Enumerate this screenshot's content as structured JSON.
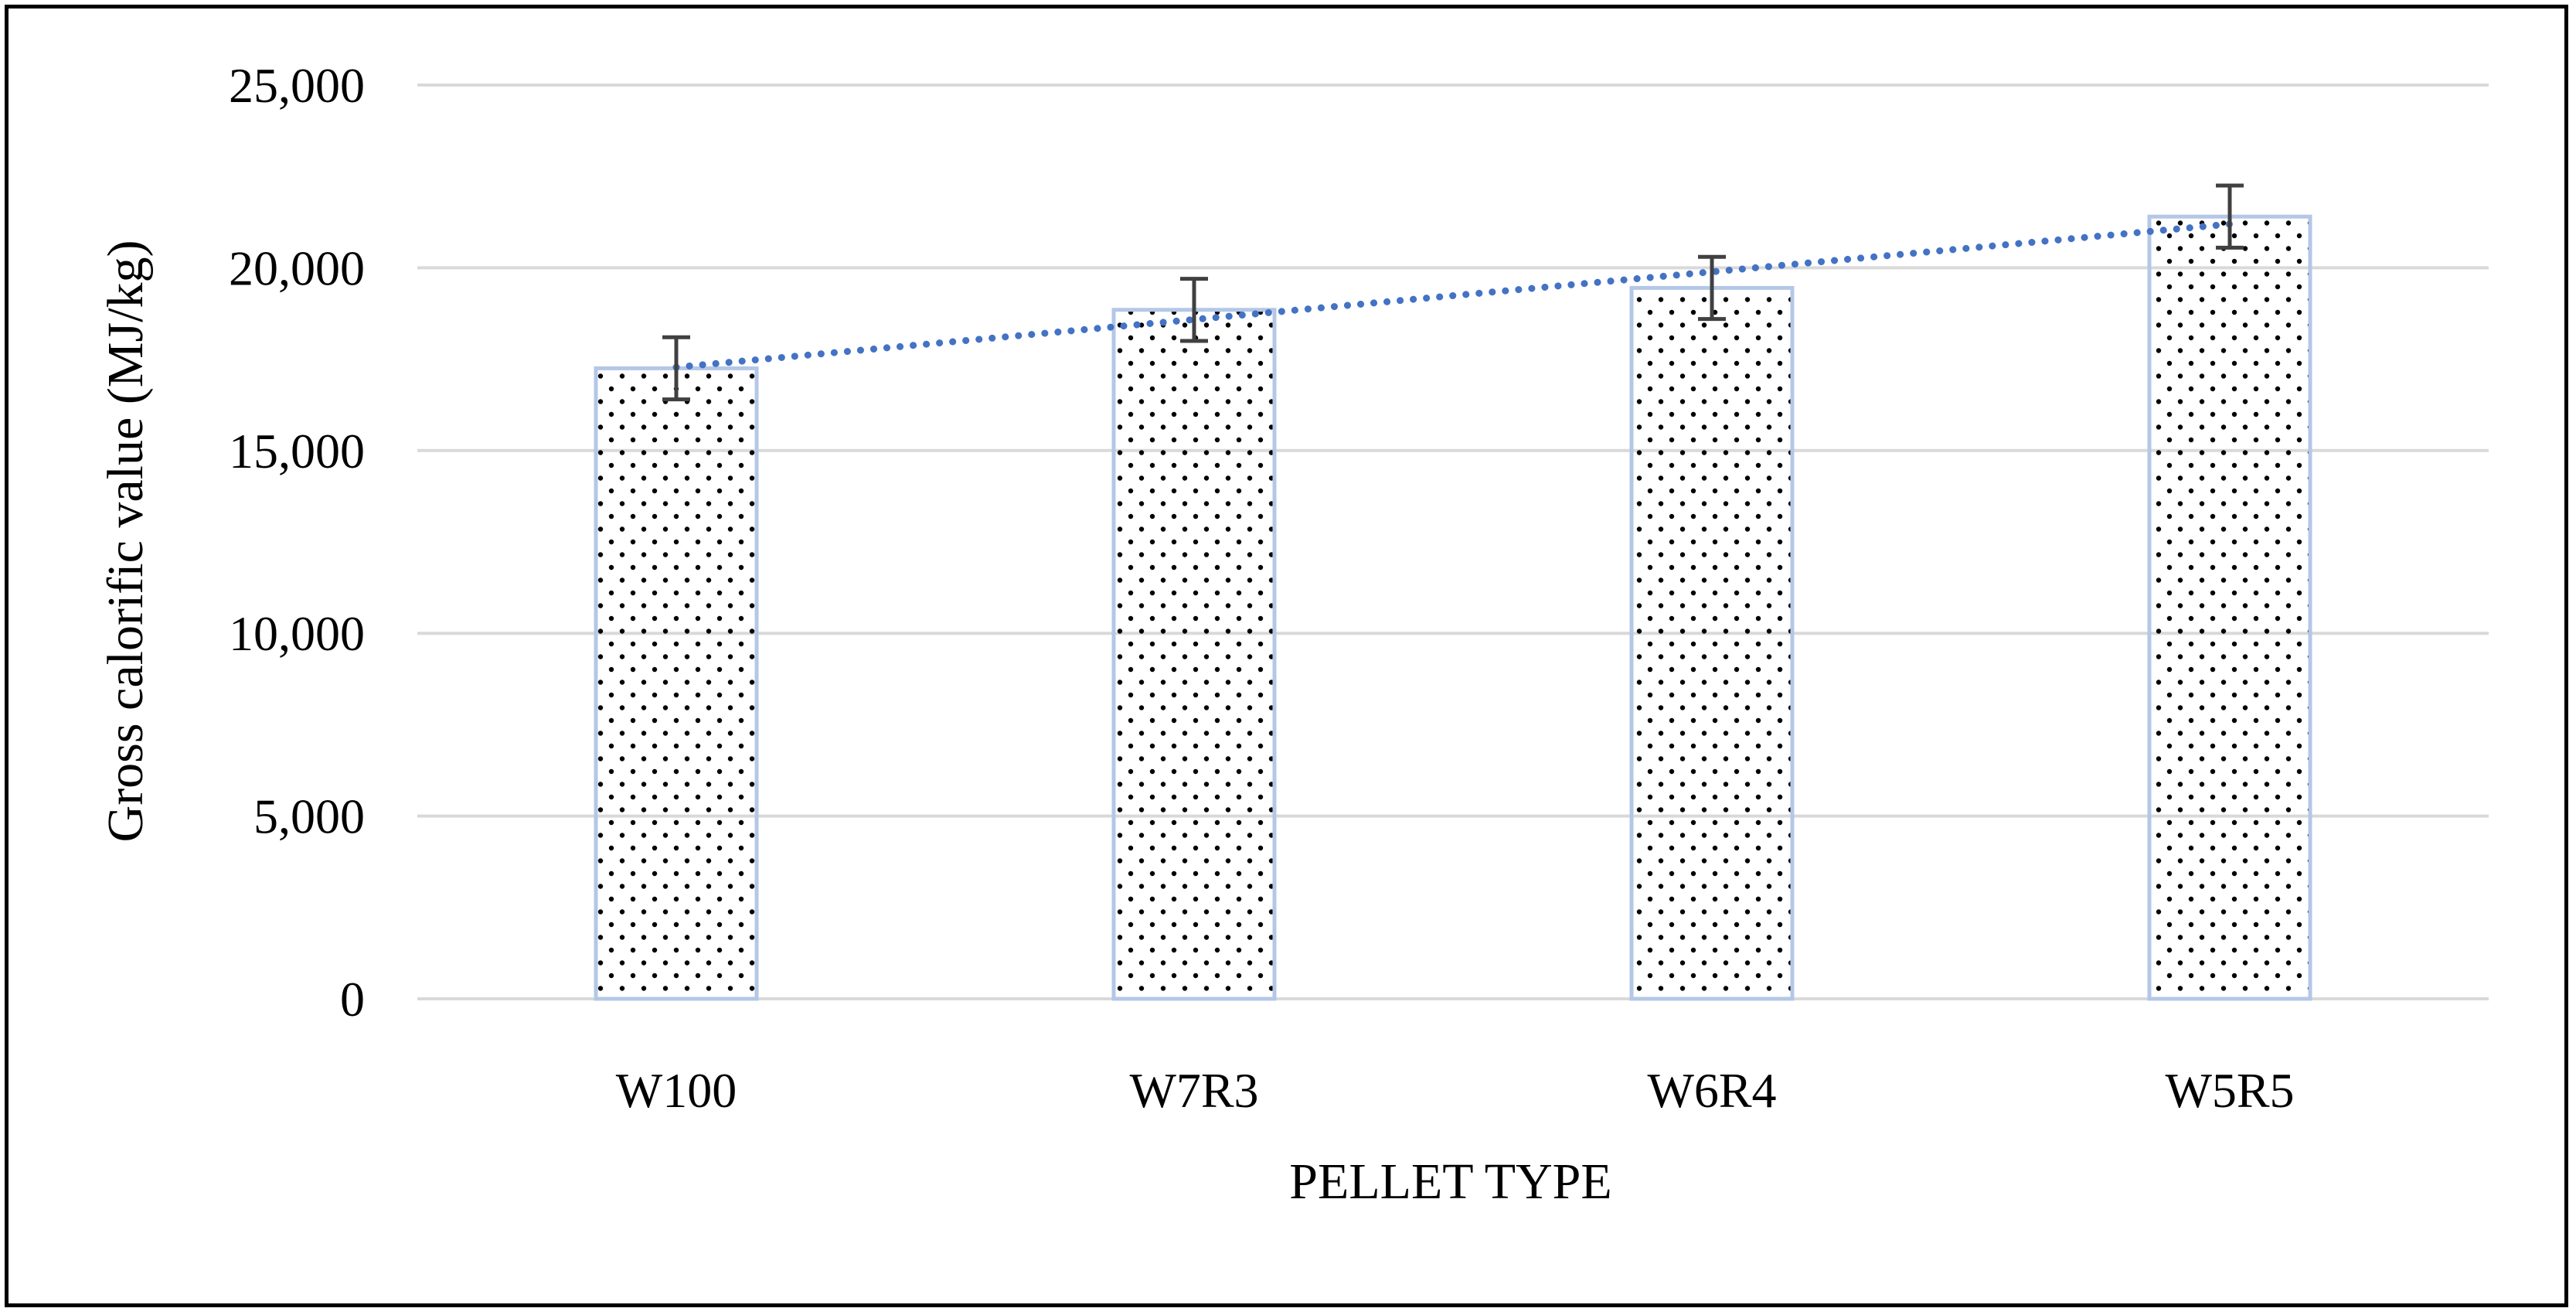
{
  "chart_data": {
    "type": "bar",
    "title": "",
    "xlabel": "PELLET TYPE",
    "ylabel": "Gross calorific value (MJ/kg)",
    "categories": [
      "W100",
      "W7R3",
      "W6R4",
      "W5R5"
    ],
    "values": [
      17250,
      18850,
      19450,
      21400
    ],
    "error": [
      850,
      850,
      850,
      850
    ],
    "ylim": [
      0,
      25000
    ],
    "yticks": [
      0,
      5000,
      10000,
      15000,
      20000,
      25000
    ],
    "ytick_labels": [
      "0",
      "5,000",
      "10,000",
      "15,000",
      "20,000",
      "25,000"
    ],
    "grid": true,
    "trendline": {
      "type": "linear",
      "style": "dotted"
    },
    "colors": {
      "bar_outline": "#b4c7e7",
      "bar_pattern_dot": "#000000",
      "trendline": "#4472c4",
      "error_bar": "#404040",
      "grid": "#d9d9d9"
    }
  }
}
